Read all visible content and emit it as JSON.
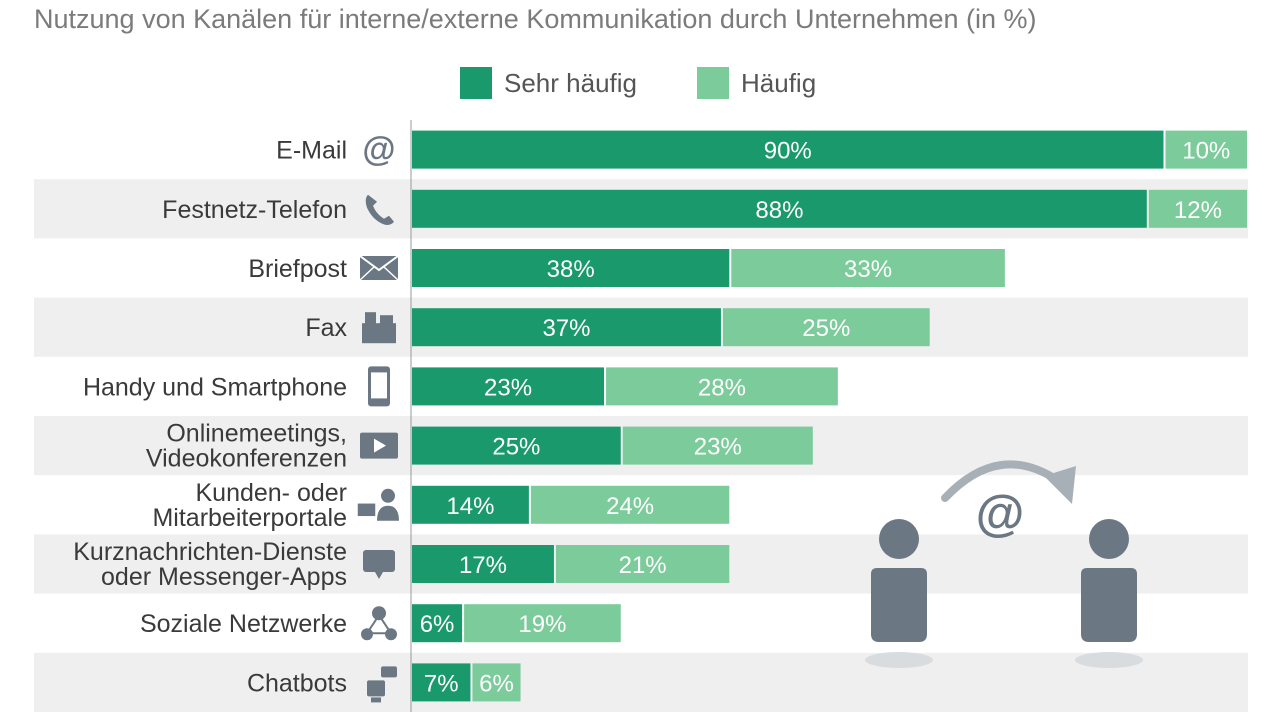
{
  "chart_data": {
    "type": "bar",
    "orientation": "horizontal",
    "stacked": true,
    "title": "Nutzung von Kanälen für interne/externe Kommunikation durch Unternehmen (in %)",
    "legend_position": "top-center",
    "categories": [
      [
        "E-Mail"
      ],
      [
        "Festnetz-Telefon"
      ],
      [
        "Briefpost"
      ],
      [
        "Fax"
      ],
      [
        "Handy und Smartphone"
      ],
      [
        "Onlinemeetings,",
        "Videokonferenzen"
      ],
      [
        "Kunden- oder",
        "Mitarbeiterportale"
      ],
      [
        "Kurznachrichten-Dienste",
        "oder Messenger-Apps"
      ],
      [
        "Soziale Netzwerke"
      ],
      [
        "Chatbots"
      ]
    ],
    "category_icons": [
      "at-icon",
      "phone-icon",
      "envelope-icon",
      "fax-icon",
      "smartphone-icon",
      "video-icon",
      "portal-icon",
      "chat-icon",
      "network-icon",
      "chatbot-icon"
    ],
    "series": [
      {
        "name": "Sehr häufig",
        "color": "#1a9a6c",
        "values": [
          90,
          88,
          38,
          37,
          23,
          25,
          14,
          17,
          6,
          7
        ],
        "labels": [
          "90%",
          "88%",
          "38%",
          "37%",
          "23%",
          "25%",
          "14%",
          "17%",
          "6%",
          "7%"
        ]
      },
      {
        "name": "Häufig",
        "color": "#7ccb9b",
        "values": [
          10,
          12,
          33,
          25,
          28,
          23,
          24,
          21,
          19,
          6
        ],
        "labels": [
          "10%",
          "12%",
          "33%",
          "25%",
          "28%",
          "23%",
          "24%",
          "21%",
          "19%",
          "6%"
        ]
      }
    ],
    "xlim": [
      0,
      100
    ],
    "grid": false,
    "decoration": {
      "label": "@",
      "icons": [
        "person-icon",
        "person-icon",
        "arrow-icon"
      ]
    }
  },
  "colors": {
    "row_band": "#efefef",
    "icon": "#6b7783",
    "bar_label": "#ffffff",
    "category_label": "#3a3a3a"
  }
}
